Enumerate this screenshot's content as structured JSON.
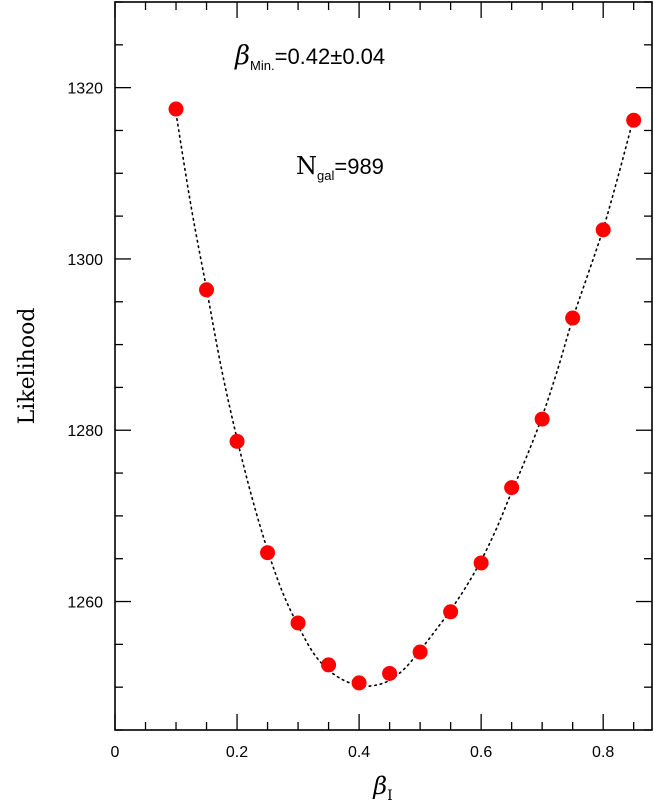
{
  "chart_data": {
    "type": "scatter",
    "title": "",
    "xlabel": {
      "base": "β",
      "sub": "I"
    },
    "ylabel": "Likelihood",
    "xlim": [
      0,
      0.88
    ],
    "ylim": [
      1245,
      1330
    ],
    "x_ticks": [
      {
        "value": 0,
        "label": "0"
      },
      {
        "value": 0.2,
        "label": "0.2"
      },
      {
        "value": 0.4,
        "label": "0.4"
      },
      {
        "value": 0.6,
        "label": "0.6"
      },
      {
        "value": 0.8,
        "label": "0.8"
      }
    ],
    "y_ticks": [
      {
        "value": 1260,
        "label": "1260"
      },
      {
        "value": 1280,
        "label": "1280"
      },
      {
        "value": 1300,
        "label": "1300"
      },
      {
        "value": 1320,
        "label": "1320"
      }
    ],
    "x_minor_step": 0.05,
    "y_minor_step": 5,
    "grid": false,
    "legend": "none",
    "series": [
      {
        "marker_color": "#ff0000",
        "x": [
          0.1,
          0.15,
          0.2,
          0.25,
          0.3,
          0.35,
          0.4,
          0.45,
          0.5,
          0.55,
          0.6,
          0.65,
          0.7,
          0.75,
          0.8,
          0.85
        ],
        "y": [
          1317.5,
          1296.4,
          1278.7,
          1265.7,
          1257.5,
          1252.6,
          1250.5,
          1251.6,
          1254.1,
          1258.8,
          1264.5,
          1273.3,
          1281.3,
          1293.1,
          1303.4,
          1316.2
        ]
      }
    ],
    "fit_curve": {
      "style": "dotted",
      "color": "#000000",
      "x": [
        0.1,
        0.125,
        0.15,
        0.175,
        0.2,
        0.225,
        0.25,
        0.275,
        0.3,
        0.325,
        0.35,
        0.375,
        0.4,
        0.425,
        0.45,
        0.475,
        0.5,
        0.525,
        0.55,
        0.575,
        0.6,
        0.625,
        0.65,
        0.675,
        0.7,
        0.725,
        0.75,
        0.775,
        0.8,
        0.825,
        0.85
      ],
      "y": [
        1317.0,
        1306.0,
        1296.5,
        1287.0,
        1279.0,
        1272.0,
        1266.0,
        1261.0,
        1257.2,
        1254.0,
        1252.0,
        1250.8,
        1250.2,
        1250.2,
        1250.8,
        1252.2,
        1254.3,
        1256.6,
        1259.0,
        1261.7,
        1264.8,
        1268.5,
        1272.8,
        1277.0,
        1281.6,
        1287.0,
        1293.0,
        1298.2,
        1303.5,
        1309.8,
        1316.5
      ]
    },
    "annotations": [
      {
        "id": "beta-min",
        "symbol": "β",
        "sub": "Min.",
        "text": "=0.42±0.04"
      },
      {
        "id": "ngal",
        "symbol": "N",
        "sub": "gal",
        "text": "=989"
      }
    ]
  }
}
